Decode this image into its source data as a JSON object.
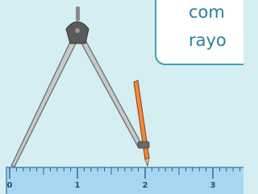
{
  "callout": {
    "lines": [
      "com",
      "rayo"
    ]
  },
  "ruler": {
    "labels": [
      "0",
      "1",
      "2",
      "3"
    ]
  }
}
